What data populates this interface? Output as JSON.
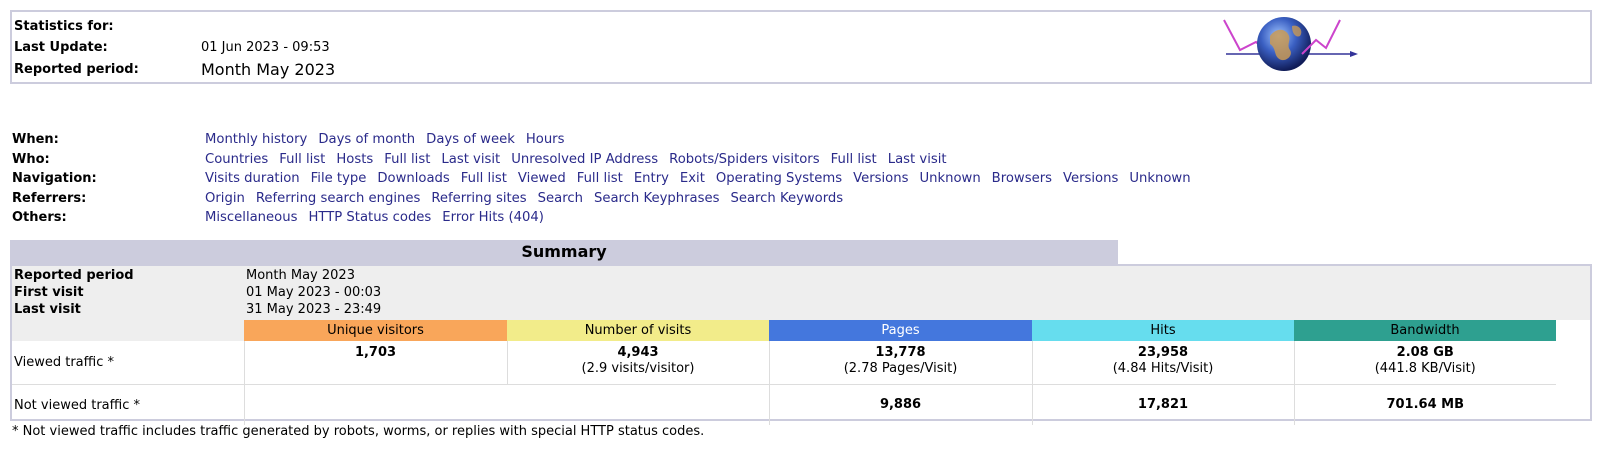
{
  "header": {
    "stats_for_label": "Statistics for:",
    "stats_for_value": "",
    "last_update_label": "Last Update:",
    "last_update_value": "01 Jun 2023 - 09:53",
    "reported_period_label": "Reported period:",
    "reported_period_value": "Month May 2023"
  },
  "menu": {
    "when": {
      "label": "When:",
      "links": [
        "Monthly history",
        "Days of month",
        "Days of week",
        "Hours"
      ]
    },
    "who": {
      "label": "Who:",
      "links": [
        "Countries",
        "Full list",
        "Hosts",
        "Full list",
        "Last visit",
        "Unresolved IP Address",
        "Robots/Spiders visitors",
        "Full list",
        "Last visit"
      ]
    },
    "navigation": {
      "label": "Navigation:",
      "links": [
        "Visits duration",
        "File type",
        "Downloads",
        "Full list",
        "Viewed",
        "Full list",
        "Entry",
        "Exit",
        "Operating Systems",
        "Versions",
        "Unknown",
        "Browsers",
        "Versions",
        "Unknown"
      ]
    },
    "referrers": {
      "label": "Referrers:",
      "links": [
        "Origin",
        "Referring search engines",
        "Referring sites",
        "Search",
        "Search Keyphrases",
        "Search Keywords"
      ]
    },
    "others": {
      "label": "Others:",
      "links": [
        "Miscellaneous",
        "HTTP Status codes",
        "Error Hits (404)"
      ]
    }
  },
  "summary": {
    "title": "Summary",
    "reported_period_label": "Reported period",
    "reported_period_value": "Month May 2023",
    "first_visit_label": "First visit",
    "first_visit_value": "01 May 2023 - 00:03",
    "last_visit_label": "Last visit",
    "last_visit_value": "31 May 2023 - 23:49",
    "columns": [
      "Unique visitors",
      "Number of visits",
      "Pages",
      "Hits",
      "Bandwidth"
    ],
    "viewed": {
      "label": "Viewed traffic *",
      "unique_visitors": "1,703",
      "visits": "4,943",
      "visits_sub": "(2.9 visits/visitor)",
      "pages": "13,778",
      "pages_sub": "(2.78 Pages/Visit)",
      "hits": "23,958",
      "hits_sub": "(4.84 Hits/Visit)",
      "bandwidth": "2.08 GB",
      "bandwidth_sub": "(441.8 KB/Visit)"
    },
    "not_viewed": {
      "label": "Not viewed traffic *",
      "pages": "9,886",
      "hits": "17,821",
      "bandwidth": "701.64 MB"
    }
  },
  "footnote": "* Not viewed traffic includes traffic generated by robots, worms, or replies with special HTTP status codes.",
  "colors": {
    "unique_visitors": "#f9a65a",
    "visits": "#f2ec8a",
    "pages": "#4477dd",
    "hits": "#66ddee",
    "bandwidth": "#2ea090",
    "link": "#2a2a8a"
  }
}
